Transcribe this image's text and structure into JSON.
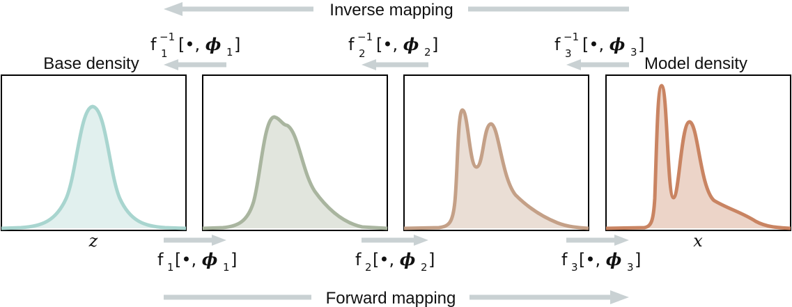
{
  "top_arrow_label": "Inverse mapping",
  "bottom_arrow_label": "Forward mapping",
  "base_density_label": "Base density",
  "model_density_label": "Model density",
  "axis_z": "z",
  "axis_x": "x",
  "inverse_functions": [
    {
      "f": "f",
      "sub": "1",
      "sup": "−1",
      "arg": "[•, ",
      "phi": "ϕ",
      "phisub": "1",
      "close": "]"
    },
    {
      "f": "f",
      "sub": "2",
      "sup": "−1",
      "arg": "[•, ",
      "phi": "ϕ",
      "phisub": "2",
      "close": "]"
    },
    {
      "f": "f",
      "sub": "3",
      "sup": "−1",
      "arg": "[•, ",
      "phi": "ϕ",
      "phisub": "3",
      "close": "]"
    }
  ],
  "forward_functions": [
    {
      "f": "f",
      "sub": "1",
      "arg": "[•, ",
      "phi": "ϕ",
      "phisub": "1",
      "close": "]"
    },
    {
      "f": "f",
      "sub": "2",
      "arg": "[•, ",
      "phi": "ϕ",
      "phisub": "2",
      "close": "]"
    },
    {
      "f": "f",
      "sub": "3",
      "arg": "[•, ",
      "phi": "ϕ",
      "phisub": "3",
      "close": "]"
    }
  ],
  "colors": {
    "panel1": "#a8d5cf",
    "panel2": "#a9b59f",
    "panel3": "#c4a087",
    "panel4": "#c98462",
    "arrow": "#c9d1d3"
  }
}
